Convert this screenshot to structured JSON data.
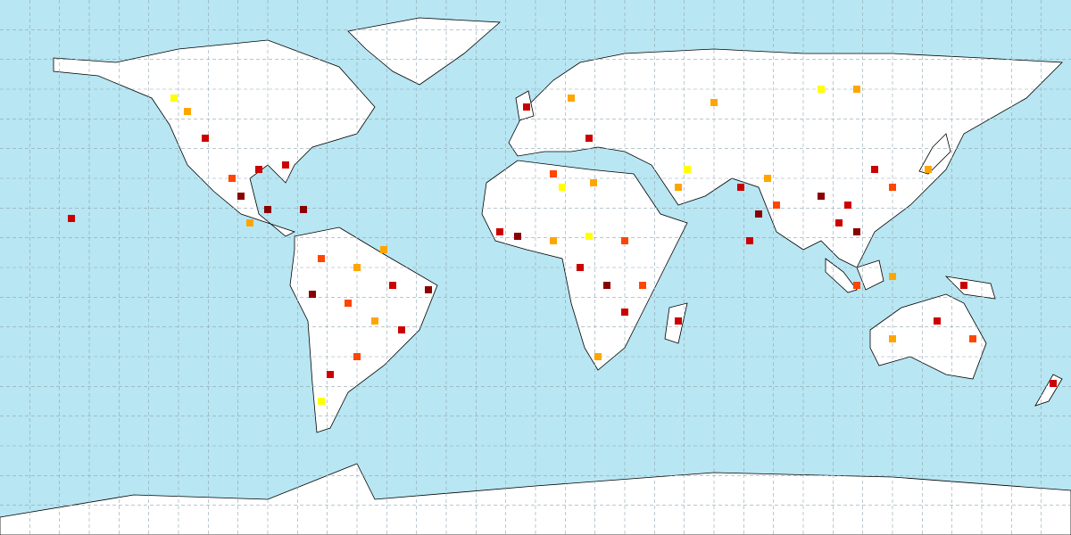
{
  "map_data": {
    "points": [
      {
        "lon": -99,
        "lat": 24,
        "color": "#8b0000"
      },
      {
        "lon": -93,
        "lat": 33,
        "color": "#cc0000"
      },
      {
        "lon": -90,
        "lat": 19.5,
        "color": "#8b0000"
      },
      {
        "lon": -102,
        "lat": 30,
        "color": "#ff4500"
      },
      {
        "lon": -84,
        "lat": 34.5,
        "color": "#cc0000"
      },
      {
        "lon": -78,
        "lat": 19.5,
        "color": "#8b0000"
      },
      {
        "lon": -96,
        "lat": 15,
        "color": "#ffa500"
      },
      {
        "lon": -121.5,
        "lat": 57,
        "color": "#ffff00"
      },
      {
        "lon": -117,
        "lat": 52.5,
        "color": "#ffa500"
      },
      {
        "lon": -111,
        "lat": 43.5,
        "color": "#cc0000"
      },
      {
        "lon": -72,
        "lat": 3,
        "color": "#ff4500"
      },
      {
        "lon": -60,
        "lat": 0,
        "color": "#ffa500"
      },
      {
        "lon": -48,
        "lat": -6,
        "color": "#cc0000"
      },
      {
        "lon": -36,
        "lat": -7.5,
        "color": "#8b0000"
      },
      {
        "lon": -63,
        "lat": -12,
        "color": "#ff4500"
      },
      {
        "lon": -54,
        "lat": -18,
        "color": "#ffa500"
      },
      {
        "lon": -45,
        "lat": -21,
        "color": "#cc0000"
      },
      {
        "lon": -60,
        "lat": -30,
        "color": "#ff4500"
      },
      {
        "lon": -69,
        "lat": -36,
        "color": "#cc0000"
      },
      {
        "lon": -72,
        "lat": -45,
        "color": "#ffff00"
      },
      {
        "lon": -75,
        "lat": -9,
        "color": "#8b0000"
      },
      {
        "lon": -51,
        "lat": 6,
        "color": "#ffa500"
      },
      {
        "lon": -12,
        "lat": 12,
        "color": "#cc0000"
      },
      {
        "lon": -6,
        "lat": 10.5,
        "color": "#8b0000"
      },
      {
        "lon": 6,
        "lat": 9,
        "color": "#ffa500"
      },
      {
        "lon": 18,
        "lat": 10.5,
        "color": "#ffff00"
      },
      {
        "lon": 30,
        "lat": 9,
        "color": "#ff4500"
      },
      {
        "lon": 15,
        "lat": 0,
        "color": "#cc0000"
      },
      {
        "lon": 24,
        "lat": -6,
        "color": "#8b0000"
      },
      {
        "lon": 36,
        "lat": -6,
        "color": "#ff4500"
      },
      {
        "lon": 30,
        "lat": -15,
        "color": "#cc0000"
      },
      {
        "lon": 21,
        "lat": -30,
        "color": "#ffa500"
      },
      {
        "lon": 48,
        "lat": -18,
        "color": "#cc0000"
      },
      {
        "lon": 9,
        "lat": 27,
        "color": "#ffff00"
      },
      {
        "lon": 19.5,
        "lat": 28.5,
        "color": "#ffa500"
      },
      {
        "lon": 51,
        "lat": 33,
        "color": "#ffff00"
      },
      {
        "lon": 48,
        "lat": 27,
        "color": "#ffa500"
      },
      {
        "lon": 69,
        "lat": 27,
        "color": "#cc0000"
      },
      {
        "lon": 75,
        "lat": 18,
        "color": "#8b0000"
      },
      {
        "lon": 81,
        "lat": 21,
        "color": "#ff4500"
      },
      {
        "lon": 72,
        "lat": 9,
        "color": "#cc0000"
      },
      {
        "lon": 78,
        "lat": 30,
        "color": "#ffa500"
      },
      {
        "lon": 96,
        "lat": 24,
        "color": "#8b0000"
      },
      {
        "lon": 102,
        "lat": 15,
        "color": "#cc0000"
      },
      {
        "lon": 108,
        "lat": 12,
        "color": "#8b0000"
      },
      {
        "lon": 120,
        "lat": 27,
        "color": "#ff4500"
      },
      {
        "lon": 114,
        "lat": 33,
        "color": "#cc0000"
      },
      {
        "lon": 132,
        "lat": 33,
        "color": "#ffa500"
      },
      {
        "lon": 105,
        "lat": 21,
        "color": "#cc0000"
      },
      {
        "lon": 108,
        "lat": -6,
        "color": "#ff4500"
      },
      {
        "lon": 120,
        "lat": -3,
        "color": "#ffa500"
      },
      {
        "lon": 144,
        "lat": -6,
        "color": "#cc0000"
      },
      {
        "lon": 120,
        "lat": -24,
        "color": "#ffa500"
      },
      {
        "lon": 147,
        "lat": -24,
        "color": "#ff4500"
      },
      {
        "lon": 135,
        "lat": -18,
        "color": "#cc0000"
      },
      {
        "lon": -3,
        "lat": 54,
        "color": "#cc0000"
      },
      {
        "lon": 12,
        "lat": 57,
        "color": "#ffa500"
      },
      {
        "lon": 18,
        "lat": 43.5,
        "color": "#cc0000"
      },
      {
        "lon": 6,
        "lat": 31.5,
        "color": "#ff4500"
      },
      {
        "lon": 96,
        "lat": 60,
        "color": "#ffff00"
      },
      {
        "lon": 108,
        "lat": 60,
        "color": "#ffa500"
      },
      {
        "lon": 60,
        "lat": 55.5,
        "color": "#ffa500"
      },
      {
        "lon": 174,
        "lat": -39,
        "color": "#cc0000"
      },
      {
        "lon": -156,
        "lat": 16.5,
        "color": "#cc0000"
      }
    ]
  }
}
